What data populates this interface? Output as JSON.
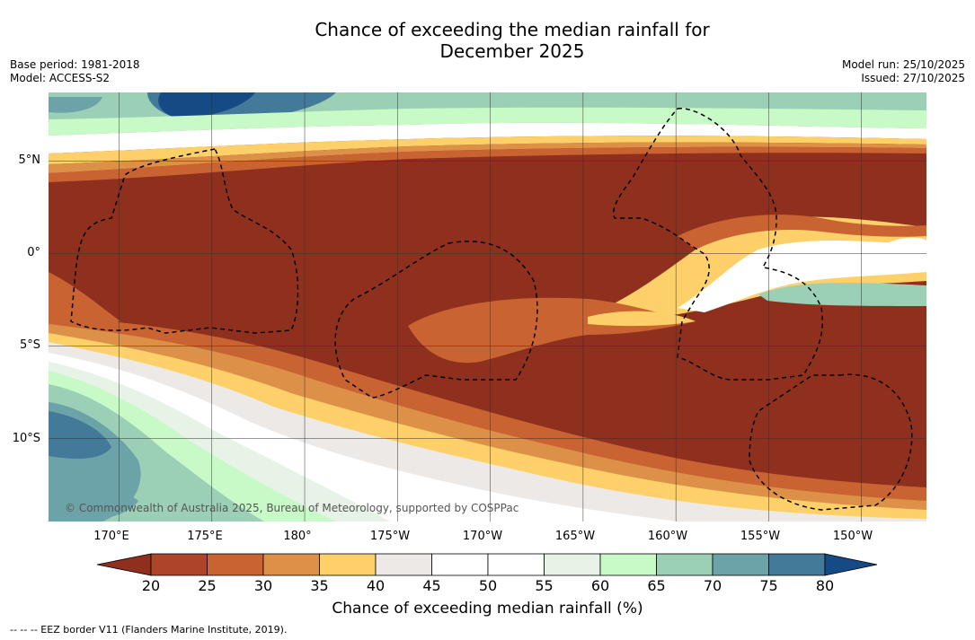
{
  "title": {
    "line1": "Chance of exceeding the median rainfall for",
    "line2": "December 2025"
  },
  "meta": {
    "base_period": "Base period: 1981-2018",
    "model": "Model: ACCESS-S2",
    "model_run": "Model run: 25/10/2025",
    "issued": "Issued: 27/10/2025"
  },
  "map": {
    "copyright": "© Commonwealth of Australia 2025, Bureau of Meteorology, supported by COSPPac",
    "lat_labels": [
      "5°N",
      "0°",
      "5°S",
      "10°S"
    ],
    "lon_labels": [
      "170°E",
      "175°E",
      "180°",
      "175°W",
      "170°W",
      "165°W",
      "160°W",
      "155°W",
      "150°W"
    ],
    "lat_values": [
      5,
      0,
      -5,
      -10
    ],
    "lon_values": [
      170,
      175,
      180,
      185,
      190,
      195,
      200,
      205,
      210
    ],
    "lat_range": [
      -14.5,
      8.7
    ],
    "lon_range": [
      166.2,
      213.5
    ]
  },
  "legend": {
    "title": "Chance of exceeding median rainfall (%)",
    "ticks": [
      "20",
      "25",
      "30",
      "35",
      "40",
      "45",
      "50",
      "55",
      "60",
      "65",
      "70",
      "75",
      "80"
    ],
    "colors": {
      "below20": "#8f2f1d",
      "20_25": "#ae4528",
      "25_30": "#c96432",
      "30_35": "#dd9148",
      "35_40": "#fdd06a",
      "40_45": "#ede9e6",
      "45_50": "#ffffff",
      "50_55": "#ffffff",
      "55_60": "#e6f3e6",
      "60_65": "#c8fac8",
      "65_70": "#9cd0b6",
      "70_75": "#6ca3a8",
      "75_80": "#437a9a",
      "above80": "#164a84"
    }
  },
  "footnote": "-- -- -- EEZ border V11 (Flanders Marine Institute, 2019)."
}
